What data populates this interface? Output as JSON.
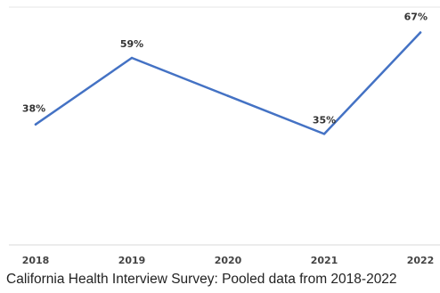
{
  "caption": "California Health Interview Survey: Pooled data from 2018-2022",
  "colors": {
    "line": "#4472C4",
    "axis": "#d9d9d9",
    "label": "#333333"
  },
  "chart_data": {
    "type": "line",
    "title": "",
    "xlabel": "",
    "ylabel": "",
    "categories": [
      "2018",
      "2019",
      "2020",
      "2021",
      "2022"
    ],
    "series": [
      {
        "values": [
          38,
          59,
          47,
          35,
          67
        ],
        "labels": [
          "38%",
          "59%",
          "",
          "35%",
          "67%"
        ]
      }
    ],
    "ylim": [
      0,
      75
    ],
    "grid": false,
    "legend": "none"
  }
}
